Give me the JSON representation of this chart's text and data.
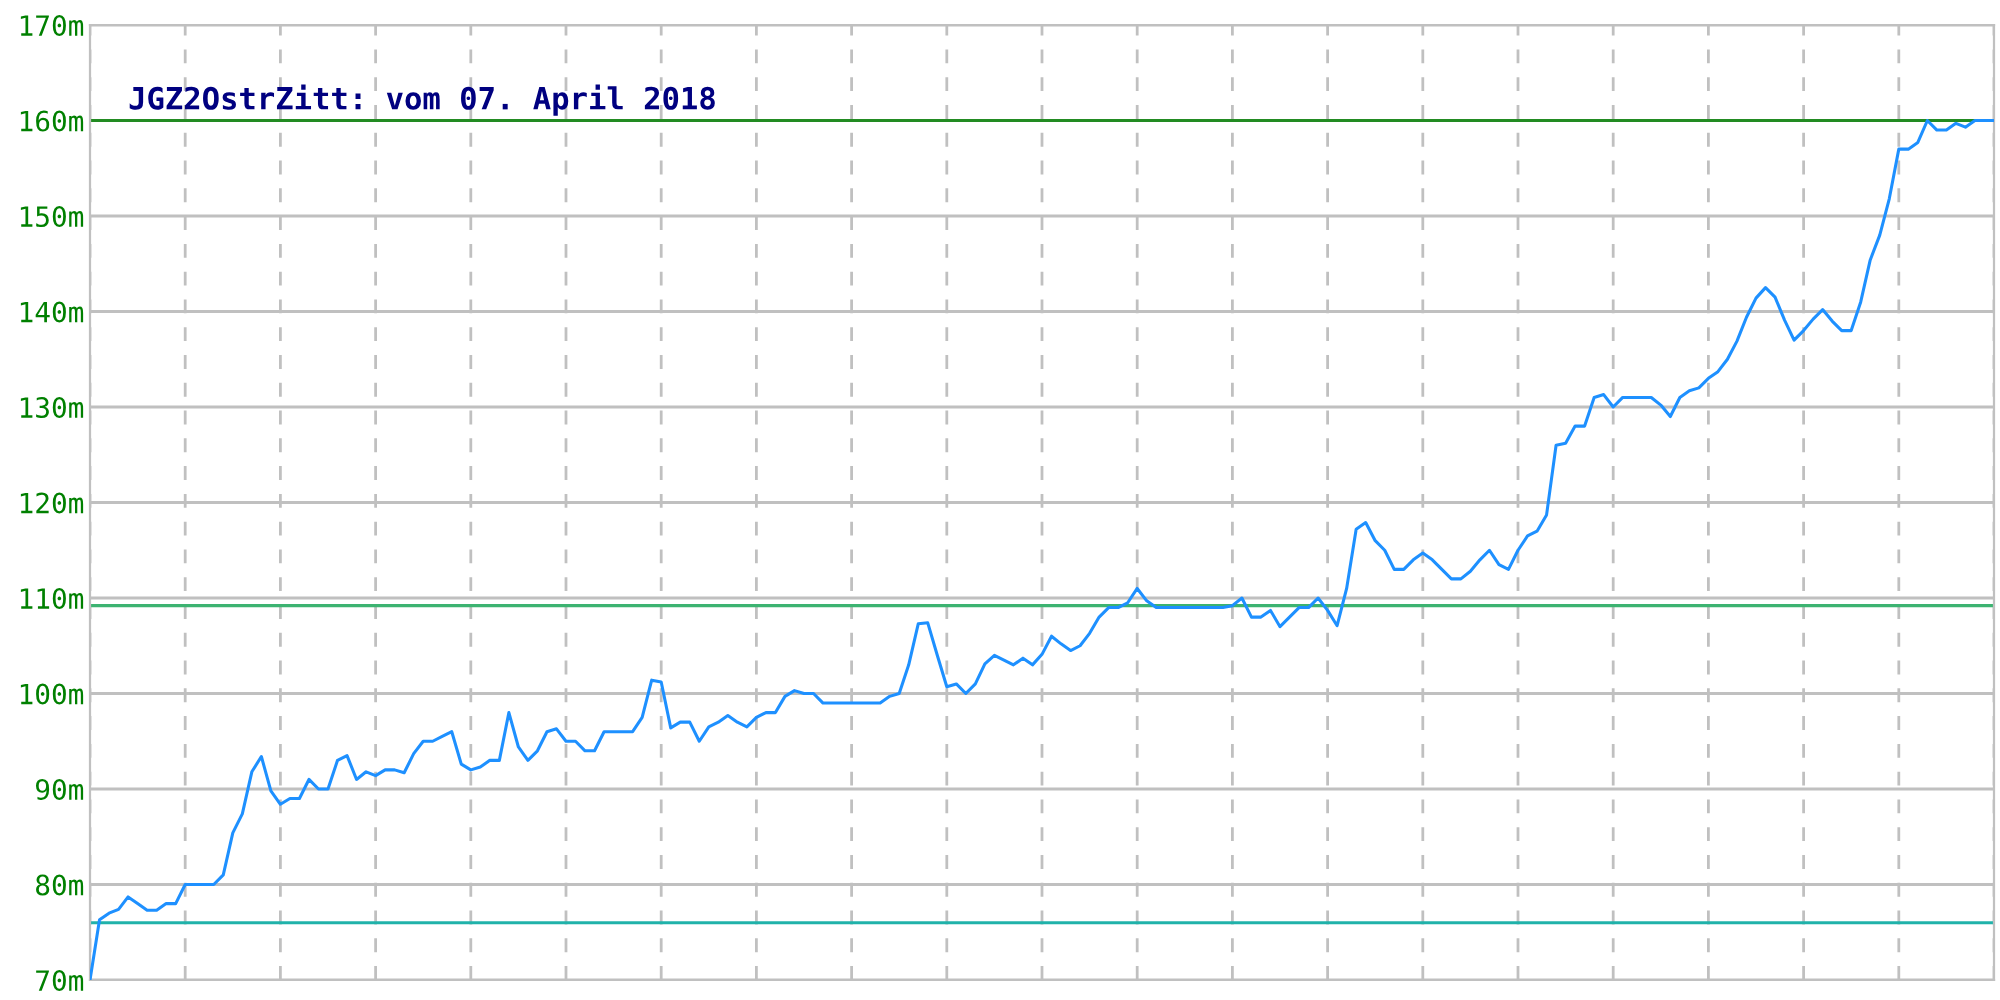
{
  "chart_data": {
    "type": "line",
    "title": "JGZ2OstrZitt: vom 07. April 2018",
    "categories": [
      null,
      null,
      null,
      null,
      null,
      null,
      null,
      null,
      null,
      null,
      null,
      null,
      null,
      null,
      null,
      null,
      null,
      null,
      null,
      null,
      null,
      null,
      null,
      null,
      null,
      null,
      null,
      null,
      null,
      null,
      null,
      null,
      null,
      null,
      null,
      null,
      null,
      null,
      null,
      null,
      null,
      null,
      null,
      null,
      null,
      null,
      null,
      null,
      null,
      null,
      null,
      null,
      null,
      null,
      null,
      null,
      null,
      null,
      null,
      null,
      null,
      null,
      null,
      null,
      null,
      null,
      null,
      null,
      null,
      null,
      null,
      null,
      null,
      null,
      null,
      null,
      null,
      null,
      null,
      null,
      null,
      null,
      null,
      null,
      null,
      null,
      null,
      null,
      null,
      null,
      null,
      null,
      null,
      null,
      null,
      null,
      null,
      null,
      null,
      null,
      null,
      null,
      null,
      null,
      null,
      null,
      null,
      null,
      null,
      null,
      null,
      null,
      null,
      null,
      null,
      null,
      null,
      null,
      null,
      null,
      null,
      null,
      null,
      null,
      null,
      null,
      null,
      null,
      null,
      null,
      null,
      null,
      null,
      null,
      null,
      null,
      null,
      null,
      null,
      null,
      null,
      null,
      null,
      null,
      null,
      null,
      null,
      null,
      null,
      null,
      null,
      null,
      null,
      null,
      null,
      null,
      null,
      null,
      null,
      null,
      null,
      null,
      null,
      null,
      null,
      null,
      null,
      null,
      null,
      null,
      null,
      null,
      null,
      null,
      null,
      null,
      null,
      null,
      null,
      null,
      null,
      null,
      null,
      null,
      null,
      null,
      null,
      null,
      null,
      null,
      null,
      null,
      null,
      null,
      null,
      null,
      null,
      null,
      null,
      null,
      null
    ],
    "ylim": [
      70,
      170
    ],
    "yticks": [
      {
        "value": 70,
        "label": "70m"
      },
      {
        "value": 80,
        "label": "80m"
      },
      {
        "value": 90,
        "label": "90m"
      },
      {
        "value": 100,
        "label": "100m"
      },
      {
        "value": 110,
        "label": "110m"
      },
      {
        "value": 120,
        "label": "120m"
      },
      {
        "value": 130,
        "label": "130m"
      },
      {
        "value": 140,
        "label": "140m"
      },
      {
        "value": 150,
        "label": "150m"
      },
      {
        "value": 160,
        "label": "160m"
      },
      {
        "value": 170,
        "label": "170m"
      }
    ],
    "tick_labels": "y",
    "grid": true,
    "marker": "none",
    "line_style": "solid",
    "ref_lines": [
      {
        "axis": "y",
        "value": 160,
        "label": null,
        "color": "#228b22"
      },
      {
        "axis": "y",
        "value": 109.2,
        "label": null,
        "color": "#3cb371"
      },
      {
        "axis": "y",
        "value": 76,
        "label": null,
        "color": "#20b2aa"
      }
    ],
    "series": [
      {
        "color": "#1e90ff",
        "values": [
          70,
          76.3,
          77,
          77.4,
          78.7,
          78,
          77.3,
          77.3,
          78,
          78,
          80,
          80,
          80,
          80,
          81,
          85.4,
          87.4,
          91.8,
          93.4,
          89.8,
          88.4,
          89,
          89,
          91,
          90,
          90,
          93,
          93.5,
          91,
          91.8,
          91.4,
          92,
          92,
          91.7,
          93.7,
          95,
          95,
          95.5,
          96,
          92.6,
          92,
          92.3,
          93,
          93,
          98,
          94.4,
          93,
          94,
          96,
          96.3,
          95,
          95,
          94,
          94,
          96,
          96,
          96,
          96,
          97.5,
          101.4,
          101.2,
          96.4,
          97,
          97,
          95,
          96.5,
          97,
          97.7,
          97,
          96.5,
          97.5,
          98,
          98,
          99.7,
          100.3,
          100,
          100,
          99,
          99,
          99,
          99,
          99,
          99,
          99,
          99.7,
          100,
          103,
          107.3,
          107.4,
          104,
          100.7,
          101,
          100,
          101,
          103.1,
          104,
          103.5,
          103,
          103.7,
          103,
          104.1,
          106,
          105.2,
          104.5,
          105,
          106.3,
          108,
          109,
          109,
          109.5,
          111,
          109.7,
          109,
          109,
          109,
          109,
          109,
          109,
          109,
          109,
          109.2,
          110,
          108,
          108,
          108.7,
          107,
          108,
          109,
          109,
          110,
          108.7,
          107.1,
          111,
          117.2,
          117.9,
          116,
          115,
          113,
          113,
          114,
          114.7,
          114,
          113,
          112,
          112,
          112.8,
          114,
          115,
          113.5,
          113,
          115,
          116.5,
          117,
          118.7,
          126,
          126.2,
          128,
          128,
          131,
          131.3,
          130,
          131,
          131,
          131,
          131,
          130.2,
          129,
          131,
          131.7,
          132,
          133,
          133.7,
          135,
          136.9,
          139.4,
          141.4,
          142.5,
          141.5,
          139.1,
          137,
          138,
          139.2,
          140.2,
          139,
          138,
          138,
          141,
          145.4,
          148,
          151.8,
          157,
          157,
          157.7,
          160,
          159,
          159,
          159.7,
          159.3,
          160,
          160,
          160
        ]
      }
    ]
  }
}
